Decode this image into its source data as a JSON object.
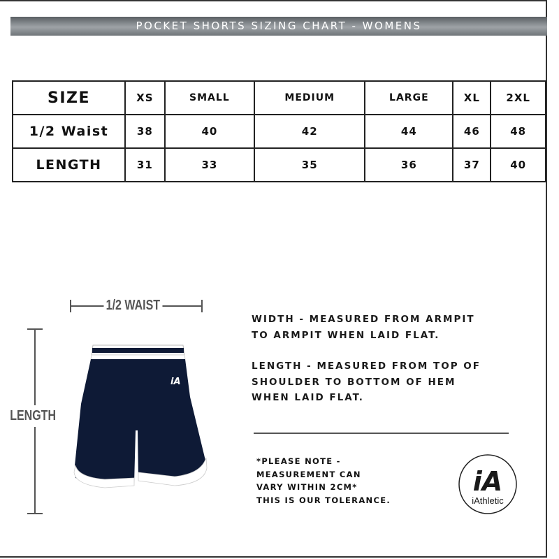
{
  "title": "POCKET SHORTS SIZING CHART - WOMENS",
  "table": {
    "header": {
      "label": "SIZE",
      "sizes": [
        "XS",
        "SMALL",
        "MEDIUM",
        "LARGE",
        "XL",
        "2XL"
      ]
    },
    "rows": [
      {
        "label": "1/2 Waist",
        "values": [
          "38",
          "40",
          "42",
          "44",
          "46",
          "48"
        ]
      },
      {
        "label": "LENGTH",
        "values": [
          "31",
          "33",
          "35",
          "36",
          "37",
          "40"
        ]
      }
    ]
  },
  "diagram": {
    "waist_label": "1/2 WAIST",
    "length_label": "LENGTH",
    "garment_color": "#0e1a36",
    "garment_logo": "iA"
  },
  "instructions": {
    "width": [
      "WIDTH - MEASURED FROM ARMPIT",
      "TO ARMPIT WHEN LAID FLAT."
    ],
    "length": [
      "LENGTH - MEASURED FROM TOP OF",
      "SHOULDER TO BOTTOM OF HEM",
      "WHEN LAID FLAT."
    ]
  },
  "note": [
    "*PLEASE NOTE -",
    "MEASUREMENT CAN",
    "VARY WITHIN 2CM*",
    "THIS IS OUR TOLERANCE."
  ],
  "logo": {
    "mark": "iA",
    "name": "iAthletic"
  }
}
